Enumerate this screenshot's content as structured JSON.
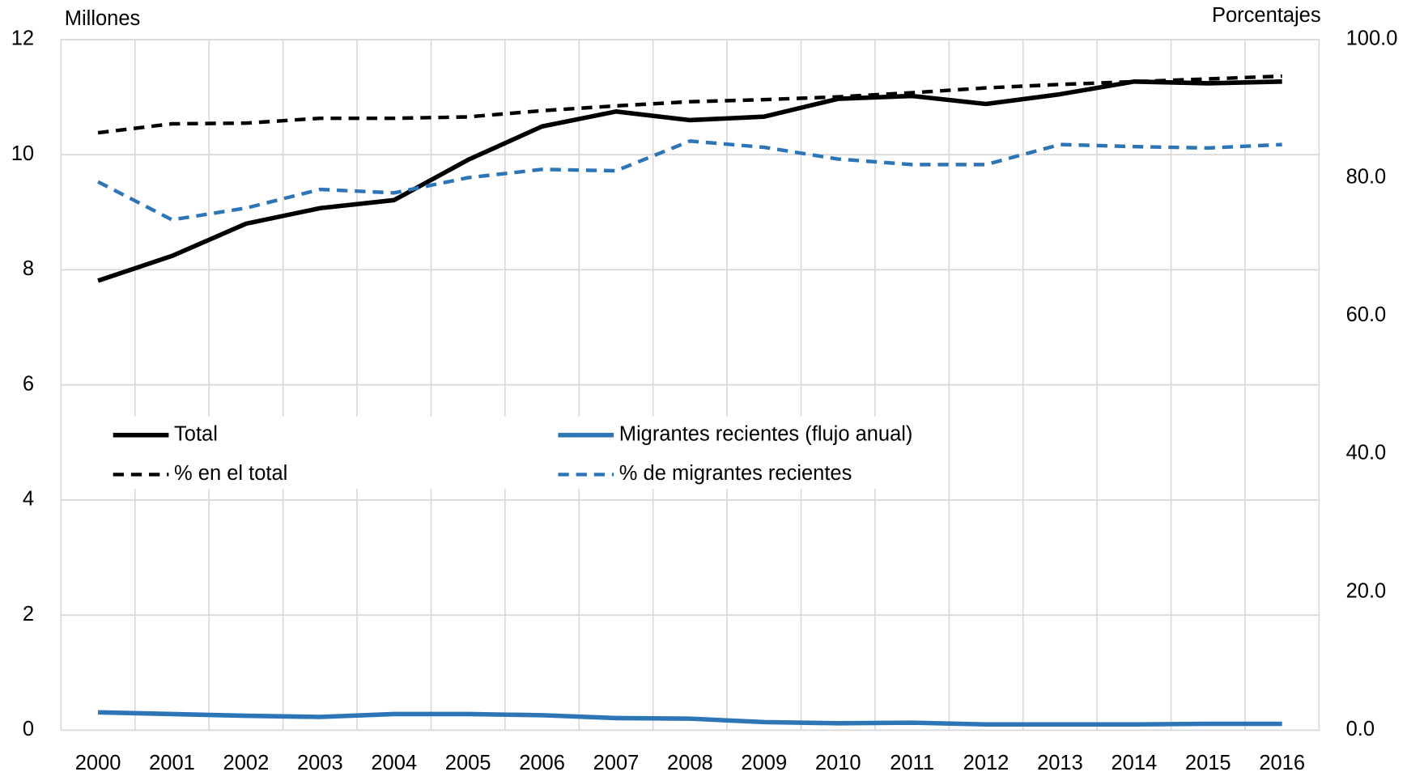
{
  "chart_data": {
    "type": "line",
    "y_label": "Millones",
    "y2_label": "Porcentajes",
    "categories": [
      "2000",
      "2001",
      "2002",
      "2003",
      "2004",
      "2005",
      "2006",
      "2007",
      "2008",
      "2009",
      "2010",
      "2011",
      "2012",
      "2013",
      "2014",
      "2015",
      "2016"
    ],
    "series": [
      {
        "name": "Total",
        "color": "#000000",
        "dashed": false,
        "axis": "y",
        "values": [
          7.81,
          8.24,
          8.8,
          9.07,
          9.21,
          9.91,
          10.49,
          10.75,
          10.6,
          10.66,
          10.97,
          11.02,
          10.88,
          11.05,
          11.27,
          11.24,
          11.27
        ]
      },
      {
        "name": "Migrantes recientes (flujo anual)",
        "color": "#2e75b6",
        "dashed": false,
        "axis": "y",
        "values": [
          0.31,
          0.28,
          0.25,
          0.23,
          0.28,
          0.28,
          0.26,
          0.21,
          0.2,
          0.14,
          0.12,
          0.13,
          0.1,
          0.1,
          0.1,
          0.11,
          0.11
        ]
      },
      {
        "name": "% en el total",
        "color": "#000000",
        "dashed": true,
        "axis": "y2",
        "values": [
          86.5,
          87.8,
          87.9,
          88.6,
          88.6,
          88.8,
          89.7,
          90.4,
          91.0,
          91.3,
          91.7,
          92.3,
          93.0,
          93.5,
          93.9,
          94.3,
          94.7
        ]
      },
      {
        "name": "% de migrantes recientes",
        "color": "#2e75b6",
        "dashed": true,
        "axis": "y2",
        "values": [
          79.4,
          73.9,
          75.6,
          78.3,
          77.8,
          80.0,
          81.2,
          81.0,
          85.3,
          84.4,
          82.7,
          81.9,
          81.9,
          84.8,
          84.5,
          84.3,
          84.8
        ]
      }
    ],
    "ylim": [
      0,
      12
    ],
    "yticks": [
      0,
      2,
      4,
      6,
      8,
      10,
      12
    ],
    "y2lim": [
      0,
      100
    ],
    "y2ticks": [
      {
        "value": 0,
        "label": "0.0"
      },
      {
        "value": 20,
        "label": "20.0"
      },
      {
        "value": 40,
        "label": "40.0"
      },
      {
        "value": 60,
        "label": "60.0"
      },
      {
        "value": 80,
        "label": "80.0"
      },
      {
        "value": 100,
        "label": "100.0"
      }
    ],
    "grid": true
  }
}
